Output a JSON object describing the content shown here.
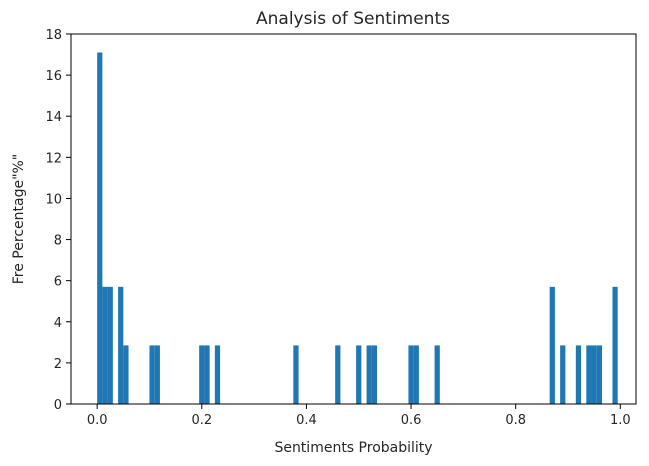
{
  "chart_data": {
    "type": "bar",
    "title": "Analysis of Sentiments",
    "xlabel": "Sentiments Probability",
    "ylabel": "Fre Percentage\"%\"",
    "xlim": [
      -0.05,
      1.03
    ],
    "ylim": [
      0,
      18
    ],
    "x_ticks": [
      0.0,
      0.2,
      0.4,
      0.6,
      0.8,
      1.0
    ],
    "x_tick_labels": [
      "0.0",
      "0.2",
      "0.4",
      "0.6",
      "0.8",
      "1.0"
    ],
    "y_ticks": [
      0,
      2,
      4,
      6,
      8,
      10,
      12,
      14,
      16,
      18
    ],
    "y_tick_labels": [
      "0",
      "2",
      "4",
      "6",
      "8",
      "10",
      "12",
      "14",
      "16",
      "18"
    ],
    "bar_width": 0.01,
    "color": "#1f77b4",
    "grid": false,
    "legend": "none",
    "bars": [
      {
        "x": 0.0,
        "value": 17.1
      },
      {
        "x": 0.01,
        "value": 5.7
      },
      {
        "x": 0.02,
        "value": 5.7
      },
      {
        "x": 0.04,
        "value": 5.7
      },
      {
        "x": 0.05,
        "value": 2.85
      },
      {
        "x": 0.1,
        "value": 2.85
      },
      {
        "x": 0.11,
        "value": 2.85
      },
      {
        "x": 0.195,
        "value": 2.85
      },
      {
        "x": 0.205,
        "value": 2.85
      },
      {
        "x": 0.225,
        "value": 2.85
      },
      {
        "x": 0.375,
        "value": 2.85
      },
      {
        "x": 0.455,
        "value": 2.85
      },
      {
        "x": 0.495,
        "value": 2.85
      },
      {
        "x": 0.515,
        "value": 2.85
      },
      {
        "x": 0.525,
        "value": 2.85
      },
      {
        "x": 0.595,
        "value": 2.85
      },
      {
        "x": 0.605,
        "value": 2.85
      },
      {
        "x": 0.645,
        "value": 2.85
      },
      {
        "x": 0.865,
        "value": 5.7
      },
      {
        "x": 0.885,
        "value": 2.85
      },
      {
        "x": 0.915,
        "value": 2.85
      },
      {
        "x": 0.935,
        "value": 2.85
      },
      {
        "x": 0.945,
        "value": 2.85
      },
      {
        "x": 0.955,
        "value": 2.85
      },
      {
        "x": 0.985,
        "value": 5.7
      }
    ]
  }
}
